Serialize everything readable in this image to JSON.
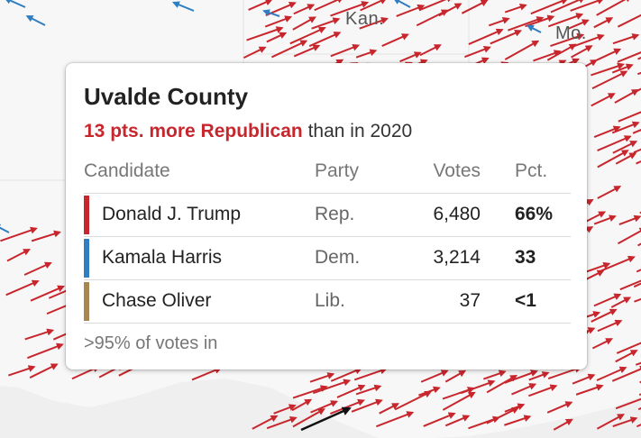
{
  "map": {
    "labels": [
      "Kan.",
      "Mo."
    ],
    "colors": {
      "background": "#efefef",
      "states": "#f7f7f7",
      "republican": "#c8262d",
      "democrat": "#2f7ec1",
      "pointer": "#111111"
    }
  },
  "tooltip": {
    "title": "Uvalde County",
    "shift_strong": "13 pts. more Republican",
    "shift_rest": " than in 2020",
    "headers": {
      "candidate": "Candidate",
      "party": "Party",
      "votes": "Votes",
      "pct": "Pct."
    },
    "rows": [
      {
        "name": "Donald J. Trump",
        "party": "Rep.",
        "votes": "6,480",
        "pct": "66%",
        "color": "#c8262d"
      },
      {
        "name": "Kamala Harris",
        "party": "Dem.",
        "votes": "3,214",
        "pct": "33",
        "color": "#2f7ec1"
      },
      {
        "name": "Chase Oliver",
        "party": "Lib.",
        "votes": "37",
        "pct": "<1",
        "color": "#a8864f"
      }
    ],
    "footer": ">95% of votes in"
  }
}
